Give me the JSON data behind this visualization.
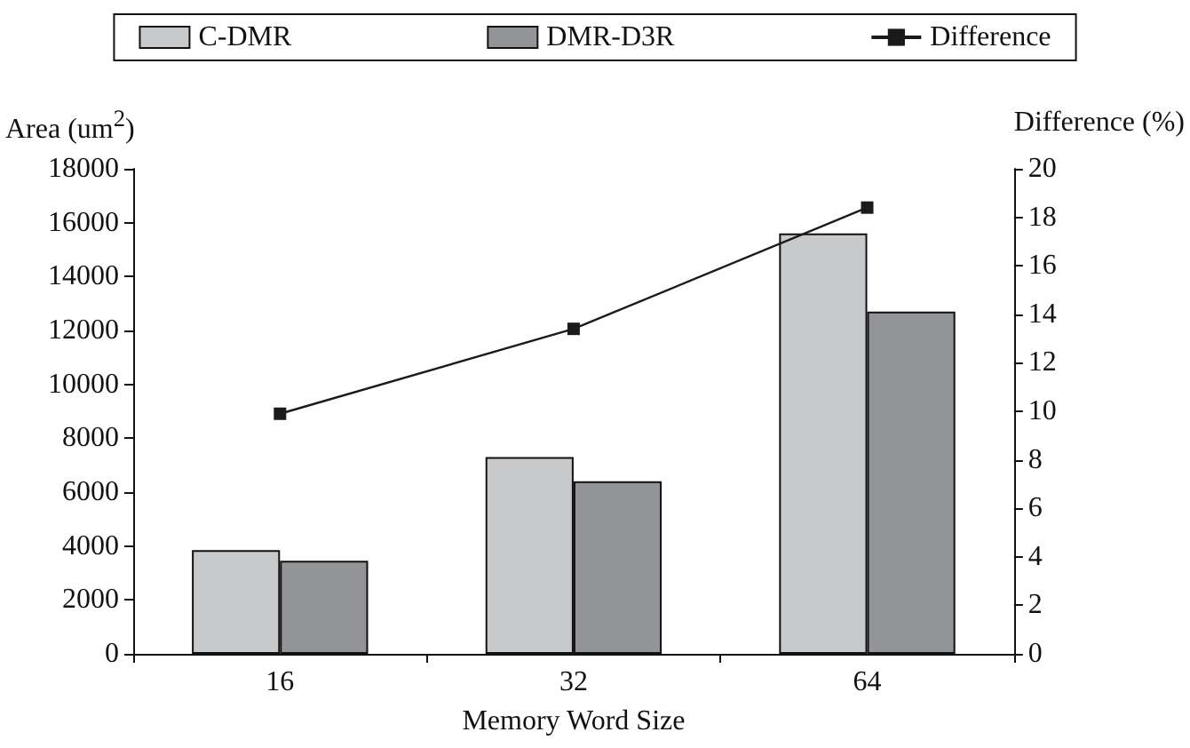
{
  "chart_data": {
    "type": "bar",
    "xlabel": "Memory Word Size",
    "ylabel": "Area (um$^{2}$)",
    "y2label": "Difference (%)",
    "categories": [
      "16",
      "32",
      "64"
    ],
    "series": [
      {
        "name": "C-DMR",
        "color": "#c8c9cb",
        "values": [
          3850,
          7300,
          15600
        ]
      },
      {
        "name": "DMR-D3R",
        "color": "#939498",
        "values": [
          3450,
          6400,
          12700
        ]
      },
      {
        "name": "Difference",
        "type": "line",
        "axis": "y2",
        "color": "#1a1a1a",
        "marker": "square",
        "values": [
          9.9,
          13.4,
          18.4
        ]
      }
    ],
    "ylim": [
      0,
      18000
    ],
    "yticks": [
      0,
      2000,
      4000,
      6000,
      8000,
      10000,
      12000,
      14000,
      16000,
      18000
    ],
    "y2lim": [
      0,
      20
    ],
    "y2ticks": [
      0,
      2,
      4,
      6,
      8,
      10,
      12,
      14,
      16,
      18,
      20
    ],
    "legend": "top",
    "grid": false
  }
}
